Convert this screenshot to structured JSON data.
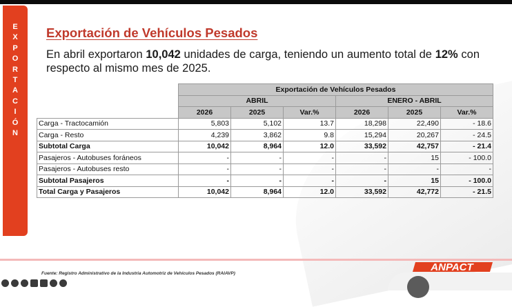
{
  "side_banner": {
    "letters": [
      "E",
      "X",
      "P",
      "O",
      "R",
      "T",
      "A",
      "C",
      "I",
      "Ó",
      "N"
    ]
  },
  "header": {
    "title": "Exportación de Vehículos Pesados"
  },
  "intro": {
    "part1": "En abril exportaron ",
    "units": "10,042",
    "part2": "  unidades de carga, teniendo un aumento total de ",
    "pct": "12%",
    "part3": " con respecto al mismo mes de 2025."
  },
  "table": {
    "title": "Exportación de Vehículos Pesados",
    "group_headers": [
      "ABRIL",
      "ENERO - ABRIL"
    ],
    "columns": [
      "2026",
      "2025",
      "Var.%",
      "2026",
      "2025",
      "Var.%"
    ],
    "rows": [
      {
        "label": "Carga - Tractocamión",
        "values": [
          "5,803",
          "5,102",
          "13.7",
          "18,298",
          "22,490",
          "- 18.6"
        ]
      },
      {
        "label": "Carga - Resto",
        "values": [
          "4,239",
          "3,862",
          "9.8",
          "15,294",
          "20,267",
          "- 24.5"
        ]
      },
      {
        "label": "Subtotal Carga",
        "values": [
          "10,042",
          "8,964",
          "12.0",
          "33,592",
          "42,757",
          "- 21.4"
        ]
      },
      {
        "label": "Pasajeros - Autobuses foráneos",
        "values": [
          "-",
          "-",
          "-",
          "-",
          "15",
          "- 100.0"
        ]
      },
      {
        "label": "Pasajeros - Autobuses resto",
        "values": [
          "-",
          "-",
          "-",
          "-",
          "-",
          "-"
        ]
      },
      {
        "label": "Subtotal Pasajeros",
        "values": [
          "-",
          "-",
          "-",
          "-",
          "15",
          "- 100.0"
        ]
      },
      {
        "label": "Total Carga y Pasajeros",
        "values": [
          "10,042",
          "8,964",
          "12.0",
          "33,592",
          "42,772",
          "- 21.5"
        ]
      }
    ]
  },
  "footer": {
    "source": "Fuente: Registro Administrativo de la Industria Automotriz de Vehículos Pesados (RAIAVP)",
    "logo": "ANPACT"
  },
  "colors": {
    "accent": "#e2401f",
    "title": "#c0392b",
    "header_bg": "#c7c7c7"
  }
}
